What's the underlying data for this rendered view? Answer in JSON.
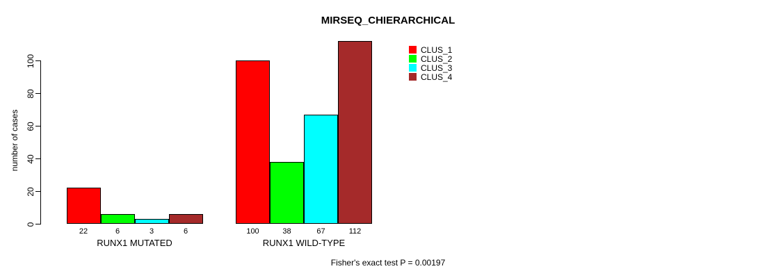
{
  "chart_data": {
    "type": "bar",
    "title": "MIRSEQ_CHIERARCHICAL",
    "ylabel": "number of cases",
    "xlabel": "",
    "categories": [
      "RUNX1 MUTATED",
      "RUNX1 WILD-TYPE"
    ],
    "series": [
      {
        "name": "CLUS_1",
        "color": "#ff0000",
        "values": [
          22,
          100
        ]
      },
      {
        "name": "CLUS_2",
        "color": "#00ff00",
        "values": [
          6,
          38
        ]
      },
      {
        "name": "CLUS_3",
        "color": "#00ffff",
        "values": [
          3,
          67
        ]
      },
      {
        "name": "CLUS_4",
        "color": "#a52a2a",
        "values": [
          6,
          112
        ]
      }
    ],
    "yticks": [
      0,
      20,
      40,
      60,
      80,
      100
    ],
    "ylim": [
      0,
      112
    ],
    "grid": false,
    "legend_position": "top-right",
    "bar_value_labels_shown": true,
    "annotation": "Fisher's exact test P = 0.00197"
  }
}
